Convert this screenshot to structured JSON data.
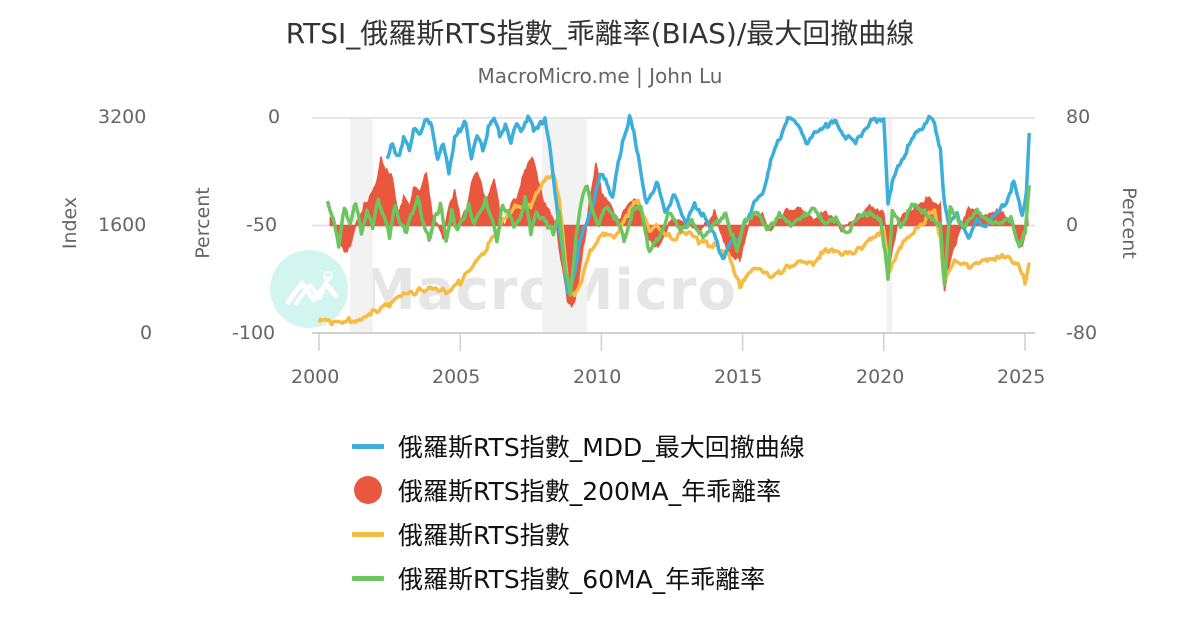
{
  "header": {
    "title": "RTSI_俄羅斯RTS指數_乖離率(BIAS)/最大回撤曲線",
    "subtitle": "MacroMicro.me | John Lu"
  },
  "watermark": {
    "text": "MacroMicro",
    "icon": "macromicro-logo-icon"
  },
  "axes": {
    "left_outer": {
      "label": "Index",
      "ticks": [
        "3200",
        "1600",
        "0"
      ]
    },
    "left_inner": {
      "label": "Percent",
      "ticks": [
        "0",
        "-50",
        "-100"
      ]
    },
    "right": {
      "label": "Percent",
      "ticks": [
        "80",
        "0",
        "-80"
      ]
    },
    "x": {
      "ticks": [
        "2000",
        "2005",
        "2010",
        "2015",
        "2020",
        "2025"
      ]
    }
  },
  "legend": {
    "items": [
      {
        "label": "俄羅斯RTS指數_MDD_最大回撤曲線",
        "color": "#3bafda",
        "symbol": "line"
      },
      {
        "label": "俄羅斯RTS指數_200MA_年乖離率",
        "color": "#e9573f",
        "symbol": "circle"
      },
      {
        "label": "俄羅斯RTS指數",
        "color": "#f6bb42",
        "symbol": "line"
      },
      {
        "label": "俄羅斯RTS指數_60MA_年乖離率",
        "color": "#6cc55f",
        "symbol": "line"
      }
    ]
  },
  "chart_data": {
    "type": "line",
    "title": "RTSI_俄羅斯RTS指數_乖離率(BIAS)/最大回撤曲線",
    "subtitle": "MacroMicro.me | John Lu",
    "xlabel": "",
    "x_range": [
      2000,
      2025.2
    ],
    "axes": {
      "index": {
        "label": "Index",
        "range": [
          0,
          3200
        ],
        "side": "left-outer"
      },
      "mdd_percent": {
        "label": "Percent",
        "range": [
          -100,
          0
        ],
        "side": "left-inner"
      },
      "bias_percent": {
        "label": "Percent",
        "range": [
          -80,
          80
        ],
        "side": "right"
      }
    },
    "grid": true,
    "legend_position": "bottom",
    "shaded_periods": [
      [
        2001.1,
        2001.9
      ],
      [
        2007.9,
        2009.5
      ],
      [
        2020.1,
        2020.3
      ]
    ],
    "series": [
      {
        "name": "俄羅斯RTS指數_MDD_最大回撤曲線",
        "axis": "mdd_percent",
        "color": "#3bafda",
        "type": "line",
        "x": [
          2002.4,
          2002.6,
          2002.8,
          2003.0,
          2003.2,
          2003.4,
          2003.6,
          2003.8,
          2004.0,
          2004.2,
          2004.4,
          2004.6,
          2004.8,
          2005.0,
          2005.2,
          2005.4,
          2005.6,
          2005.8,
          2006.0,
          2006.2,
          2006.4,
          2006.6,
          2006.8,
          2007.0,
          2007.2,
          2007.4,
          2007.6,
          2007.8,
          2008.0,
          2008.2,
          2008.4,
          2008.6,
          2008.8,
          2009.0,
          2009.2,
          2009.4,
          2009.6,
          2009.8,
          2010.0,
          2010.2,
          2010.4,
          2010.6,
          2010.8,
          2011.0,
          2011.2,
          2011.4,
          2011.6,
          2011.8,
          2012.0,
          2012.3,
          2012.6,
          2013.0,
          2013.3,
          2013.6,
          2014.0,
          2014.3,
          2014.6,
          2014.9,
          2015.1,
          2015.4,
          2015.7,
          2016.0,
          2016.3,
          2016.6,
          2017.0,
          2017.3,
          2017.6,
          2018.0,
          2018.3,
          2018.6,
          2019.0,
          2019.3,
          2019.6,
          2020.0,
          2020.15,
          2020.3,
          2020.6,
          2021.0,
          2021.3,
          2021.6,
          2021.8,
          2022.0,
          2022.15,
          2022.3,
          2022.6,
          2023.0,
          2023.3,
          2023.6,
          2024.0,
          2024.3,
          2024.6,
          2024.9,
          2025.05,
          2025.15
        ],
        "values": [
          -20,
          -12,
          -18,
          -10,
          -14,
          -4,
          -8,
          0,
          -3,
          -20,
          -12,
          -25,
          -10,
          -5,
          -2,
          -20,
          -8,
          -15,
          -5,
          0,
          -8,
          -3,
          -12,
          -2,
          -6,
          0,
          -5,
          -3,
          -1,
          -15,
          -40,
          -60,
          -80,
          -75,
          -60,
          -50,
          -45,
          -35,
          -25,
          -30,
          -38,
          -20,
          -8,
          0,
          -10,
          -25,
          -40,
          -35,
          -30,
          -45,
          -35,
          -50,
          -40,
          -45,
          -55,
          -65,
          -58,
          -55,
          -48,
          -40,
          -35,
          -20,
          -10,
          0,
          -3,
          -12,
          -6,
          -3,
          -2,
          -8,
          -12,
          -5,
          -1,
          0,
          -40,
          -30,
          -20,
          -10,
          -5,
          0,
          -2,
          -15,
          -40,
          -50,
          -45,
          -55,
          -48,
          -50,
          -45,
          -40,
          -30,
          -45,
          -35,
          -7
        ]
      },
      {
        "name": "俄羅斯RTS指數_200MA_年乖離率",
        "axis": "bias_percent",
        "color": "#e9573f",
        "type": "area",
        "x": [
          2000.4,
          2000.6,
          2000.8,
          2001.0,
          2001.2,
          2001.4,
          2001.6,
          2001.8,
          2002.0,
          2002.2,
          2002.4,
          2002.6,
          2002.8,
          2003.0,
          2003.2,
          2003.4,
          2003.6,
          2003.8,
          2004.0,
          2004.2,
          2004.4,
          2004.6,
          2004.8,
          2005.0,
          2005.2,
          2005.4,
          2005.6,
          2005.8,
          2006.0,
          2006.2,
          2006.4,
          2006.6,
          2006.8,
          2007.0,
          2007.2,
          2007.4,
          2007.6,
          2007.8,
          2008.0,
          2008.2,
          2008.4,
          2008.6,
          2008.8,
          2009.0,
          2009.2,
          2009.4,
          2009.6,
          2009.8,
          2010.0,
          2010.3,
          2010.6,
          2011.0,
          2011.3,
          2011.6,
          2012.0,
          2012.5,
          2013.0,
          2013.5,
          2014.0,
          2014.5,
          2014.9,
          2015.3,
          2015.7,
          2016.0,
          2016.5,
          2017.0,
          2017.5,
          2018.0,
          2018.5,
          2019.0,
          2019.5,
          2020.0,
          2020.2,
          2020.5,
          2021.0,
          2021.5,
          2022.0,
          2022.15,
          2022.4,
          2022.7,
          2023.0,
          2023.5,
          2024.0,
          2024.5,
          2024.9,
          2025.1
        ],
        "values": [
          5,
          0,
          -15,
          -20,
          -8,
          5,
          15,
          20,
          30,
          50,
          40,
          35,
          10,
          20,
          15,
          30,
          25,
          40,
          10,
          0,
          -10,
          15,
          25,
          5,
          10,
          30,
          40,
          25,
          20,
          35,
          10,
          0,
          15,
          20,
          35,
          45,
          50,
          30,
          15,
          10,
          0,
          -30,
          -55,
          -60,
          -40,
          -10,
          20,
          45,
          25,
          15,
          5,
          15,
          20,
          -10,
          -15,
          5,
          0,
          -5,
          10,
          -20,
          -25,
          5,
          10,
          -5,
          10,
          15,
          5,
          10,
          -5,
          5,
          15,
          10,
          -30,
          5,
          10,
          20,
          15,
          -50,
          -20,
          -5,
          15,
          5,
          10,
          5,
          -15,
          5
        ]
      },
      {
        "name": "俄羅斯RTS指數",
        "axis": "index",
        "color": "#f6bb42",
        "type": "line",
        "x": [
          2000.0,
          2000.5,
          2001.0,
          2001.5,
          2002.0,
          2002.5,
          2003.0,
          2003.5,
          2004.0,
          2004.5,
          2005.0,
          2005.5,
          2006.0,
          2006.5,
          2007.0,
          2007.5,
          2007.9,
          2008.3,
          2008.5,
          2008.8,
          2009.0,
          2009.3,
          2009.6,
          2010.0,
          2010.5,
          2011.0,
          2011.3,
          2011.7,
          2012.0,
          2012.5,
          2013.0,
          2013.5,
          2014.0,
          2014.5,
          2014.9,
          2015.3,
          2015.6,
          2016.0,
          2016.5,
          2017.0,
          2017.5,
          2018.0,
          2018.5,
          2019.0,
          2019.5,
          2020.0,
          2020.2,
          2020.5,
          2021.0,
          2021.5,
          2021.8,
          2022.0,
          2022.15,
          2022.5,
          2023.0,
          2023.5,
          2024.0,
          2024.4,
          2024.8,
          2025.0,
          2025.15
        ],
        "values": [
          200,
          150,
          180,
          220,
          340,
          420,
          550,
          620,
          700,
          620,
          760,
          1000,
          1300,
          1700,
          1900,
          1900,
          2200,
          2400,
          2000,
          800,
          550,
          800,
          1200,
          1500,
          1400,
          1800,
          2000,
          1500,
          1600,
          1400,
          1500,
          1350,
          1300,
          1200,
          700,
          900,
          1000,
          800,
          950,
          1100,
          1050,
          1250,
          1150,
          1200,
          1400,
          1550,
          900,
          1250,
          1450,
          1700,
          1850,
          1400,
          750,
          1100,
          1000,
          1050,
          1100,
          1150,
          1000,
          750,
          1050
        ]
      },
      {
        "name": "俄羅斯RTS指數_60MA_年乖離率",
        "axis": "bias_percent",
        "color": "#6cc55f",
        "type": "line",
        "x": [
          2000.3,
          2000.5,
          2000.7,
          2000.9,
          2001.1,
          2001.3,
          2001.5,
          2001.7,
          2001.9,
          2002.1,
          2002.3,
          2002.5,
          2002.7,
          2002.9,
          2003.1,
          2003.3,
          2003.5,
          2003.7,
          2003.9,
          2004.1,
          2004.3,
          2004.5,
          2004.7,
          2004.9,
          2005.1,
          2005.3,
          2005.5,
          2005.7,
          2005.9,
          2006.1,
          2006.3,
          2006.5,
          2006.7,
          2006.9,
          2007.1,
          2007.3,
          2007.5,
          2007.7,
          2007.9,
          2008.1,
          2008.3,
          2008.5,
          2008.7,
          2008.9,
          2009.1,
          2009.3,
          2009.5,
          2009.7,
          2009.9,
          2010.2,
          2010.5,
          2010.8,
          2011.1,
          2011.4,
          2011.7,
          2012.0,
          2012.4,
          2012.8,
          2013.2,
          2013.6,
          2014.0,
          2014.4,
          2014.8,
          2015.1,
          2015.5,
          2015.9,
          2016.3,
          2016.7,
          2017.1,
          2017.5,
          2017.9,
          2018.3,
          2018.7,
          2019.1,
          2019.5,
          2019.9,
          2020.15,
          2020.3,
          2020.6,
          2021.0,
          2021.4,
          2021.8,
          2022.0,
          2022.15,
          2022.35,
          2022.6,
          2022.9,
          2023.3,
          2023.7,
          2024.1,
          2024.5,
          2024.8,
          2025.0,
          2025.15
        ],
        "values": [
          20,
          5,
          -15,
          15,
          0,
          18,
          -5,
          10,
          0,
          20,
          5,
          -8,
          15,
          0,
          -5,
          10,
          20,
          0,
          -10,
          5,
          15,
          -10,
          10,
          -5,
          5,
          15,
          0,
          10,
          20,
          5,
          -10,
          15,
          10,
          0,
          5,
          20,
          -5,
          10,
          5,
          0,
          -5,
          10,
          -30,
          -50,
          -10,
          20,
          30,
          10,
          0,
          15,
          5,
          -10,
          10,
          15,
          -20,
          -10,
          10,
          -5,
          5,
          -10,
          0,
          10,
          -20,
          5,
          10,
          -5,
          10,
          0,
          5,
          15,
          0,
          5,
          -5,
          5,
          10,
          5,
          -40,
          10,
          0,
          15,
          10,
          5,
          0,
          -45,
          15,
          5,
          0,
          10,
          5,
          0,
          5,
          -15,
          -5,
          30
        ]
      }
    ]
  }
}
